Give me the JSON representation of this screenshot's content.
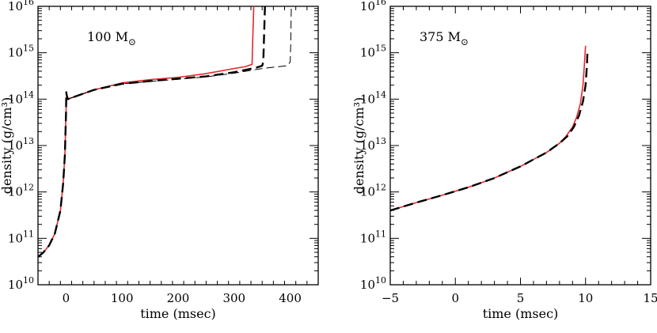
{
  "chart_data": [
    {
      "type": "line",
      "id": "left",
      "annotation": {
        "value": "100",
        "unit": "M",
        "unit_symbol": "⊙"
      },
      "xlabel": "time (msec)",
      "ylabel": "density (g/cm³)",
      "xlim": [
        -50,
        450
      ],
      "ylim_log10": [
        10,
        16
      ],
      "xticks": [
        0,
        100,
        200,
        300,
        400
      ],
      "xtick_labels": [
        "0",
        "100",
        "200",
        "300",
        "400"
      ],
      "yticks_log10": [
        10,
        11,
        12,
        13,
        14,
        15,
        16
      ],
      "ytick_labels": [
        {
          "base": "10",
          "exp": "10"
        },
        {
          "base": "10",
          "exp": "11"
        },
        {
          "base": "10",
          "exp": "12"
        },
        {
          "base": "10",
          "exp": "13"
        },
        {
          "base": "10",
          "exp": "14"
        },
        {
          "base": "10",
          "exp": "15"
        },
        {
          "base": "10",
          "exp": "16"
        }
      ],
      "series": [
        {
          "name": "red solid",
          "color": "#e8262b",
          "style": "solid",
          "width": 1.6,
          "x": [
            -50,
            -40,
            -30,
            -20,
            -10,
            -5,
            -2,
            0,
            1,
            3,
            50,
            100,
            150,
            200,
            250,
            300,
            320,
            332,
            333,
            335
          ],
          "log10_y": [
            10.6,
            10.7,
            10.85,
            11.1,
            11.6,
            12.2,
            12.8,
            13.7,
            14.05,
            14.0,
            14.2,
            14.35,
            14.42,
            14.47,
            14.55,
            14.66,
            14.7,
            14.75,
            15.2,
            16
          ]
        },
        {
          "name": "black thick dashed",
          "color": "#000000",
          "style": "dashed-thick",
          "width": 2.4,
          "x": [
            -50,
            -40,
            -30,
            -20,
            -10,
            -5,
            -2,
            0,
            0.5,
            1,
            3,
            50,
            100,
            150,
            200,
            250,
            300,
            340,
            350,
            352,
            353,
            355
          ],
          "log10_y": [
            10.6,
            10.7,
            10.85,
            11.1,
            11.6,
            12.2,
            12.8,
            13.7,
            14.15,
            14.1,
            14.0,
            14.2,
            14.33,
            14.39,
            14.44,
            14.49,
            14.58,
            14.68,
            14.72,
            14.8,
            15.2,
            16
          ]
        },
        {
          "name": "black thin dashed",
          "color": "#000000",
          "style": "dashed-thin",
          "width": 1.0,
          "x": [
            3,
            50,
            100,
            150,
            200,
            250,
            300,
            350,
            380,
            395,
            400,
            401,
            402
          ],
          "log10_y": [
            14.0,
            14.2,
            14.33,
            14.38,
            14.43,
            14.48,
            14.56,
            14.66,
            14.7,
            14.72,
            14.8,
            15.2,
            16
          ]
        }
      ]
    },
    {
      "type": "line",
      "id": "right",
      "annotation": {
        "value": "375",
        "unit": "M",
        "unit_symbol": "⊙"
      },
      "xlabel": "time (msec)",
      "ylabel": "density (g/cm³)",
      "xlim": [
        -5,
        15
      ],
      "ylim_log10": [
        10,
        16
      ],
      "xticks": [
        -5,
        0,
        5,
        10,
        15
      ],
      "xtick_labels": [
        "−5",
        "0",
        "5",
        "10",
        "15"
      ],
      "yticks_log10": [
        10,
        11,
        12,
        13,
        14,
        15,
        16
      ],
      "ytick_labels": [
        {
          "base": "10",
          "exp": "10"
        },
        {
          "base": "10",
          "exp": "11"
        },
        {
          "base": "10",
          "exp": "12"
        },
        {
          "base": "10",
          "exp": "13"
        },
        {
          "base": "10",
          "exp": "14"
        },
        {
          "base": "10",
          "exp": "15"
        },
        {
          "base": "10",
          "exp": "16"
        }
      ],
      "series": [
        {
          "name": "red solid",
          "color": "#e8262b",
          "style": "solid",
          "width": 1.6,
          "x": [
            -5,
            -3,
            -1,
            1,
            3,
            5,
            6,
            7,
            8,
            8.5,
            9,
            9.3,
            9.6,
            9.8,
            9.9,
            10.0
          ],
          "log10_y": [
            11.6,
            11.77,
            11.93,
            12.1,
            12.3,
            12.55,
            12.7,
            12.85,
            13.05,
            13.2,
            13.4,
            13.6,
            13.9,
            14.3,
            14.7,
            15.15
          ]
        },
        {
          "name": "black thick dashed",
          "color": "#000000",
          "style": "dashed-thick",
          "width": 2.4,
          "x": [
            -5,
            -3,
            -1,
            1,
            3,
            5,
            6,
            7,
            8,
            8.6,
            9.1,
            9.5,
            9.8,
            10.0,
            10.1,
            10.15
          ],
          "log10_y": [
            11.6,
            11.77,
            11.93,
            12.1,
            12.3,
            12.55,
            12.7,
            12.85,
            13.05,
            13.2,
            13.4,
            13.65,
            13.95,
            14.3,
            14.7,
            15.05
          ]
        }
      ]
    }
  ]
}
